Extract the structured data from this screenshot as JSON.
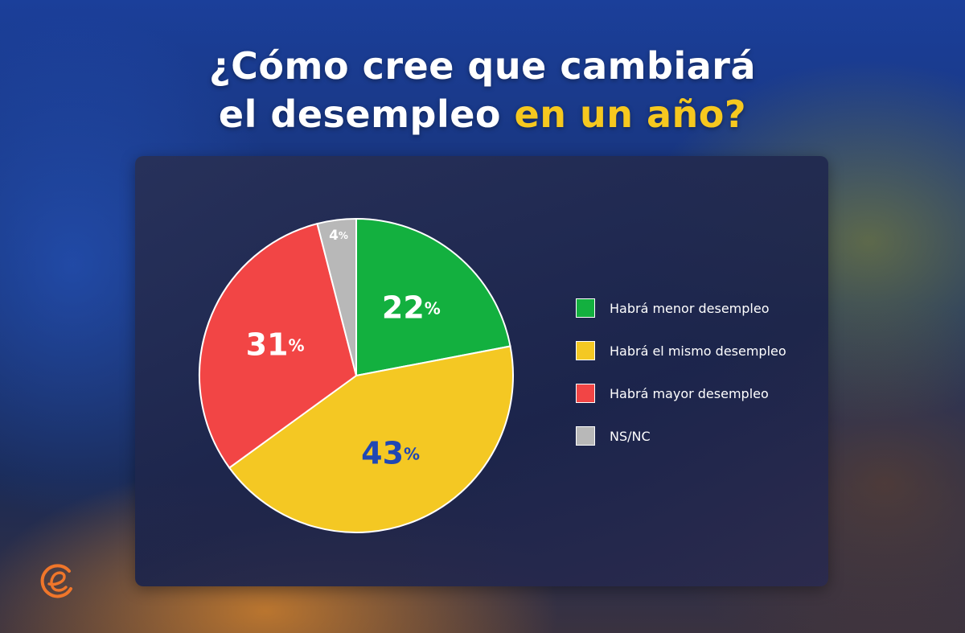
{
  "title": {
    "line1": "¿Cómo cree que cambiará",
    "line2_prefix": "el desempleo ",
    "line2_accent": "en un año?"
  },
  "chart_data": {
    "type": "pie",
    "title": "¿Cómo cree que cambiará el desempleo en un año?",
    "legend_position": "right",
    "slices": [
      {
        "label": "Habrá menor desempleo",
        "value": 22,
        "color": "#13b03f",
        "label_color": "#ffffff"
      },
      {
        "label": "Habrá el mismo desempleo",
        "value": 43,
        "color": "#f4c823",
        "label_color": "#1f47b4"
      },
      {
        "label": "Habrá mayor desempleo",
        "value": 31,
        "color": "#f24545",
        "label_color": "#ffffff"
      },
      {
        "label": "NS/NC",
        "value": 4,
        "color": "#b8b8b8",
        "label_color": "#ffffff"
      }
    ]
  },
  "legend": [
    {
      "label": "Habrá menor desempleo",
      "color": "#13b03f"
    },
    {
      "label": "Habrá el mismo desempleo",
      "color": "#f4c823"
    },
    {
      "label": "Habrá mayor desempleo",
      "color": "#f24545"
    },
    {
      "label": "NS/NC",
      "color": "#b8b8b8"
    }
  ],
  "logo": {
    "icon": "e-logo-icon",
    "color": "#f0762a"
  }
}
